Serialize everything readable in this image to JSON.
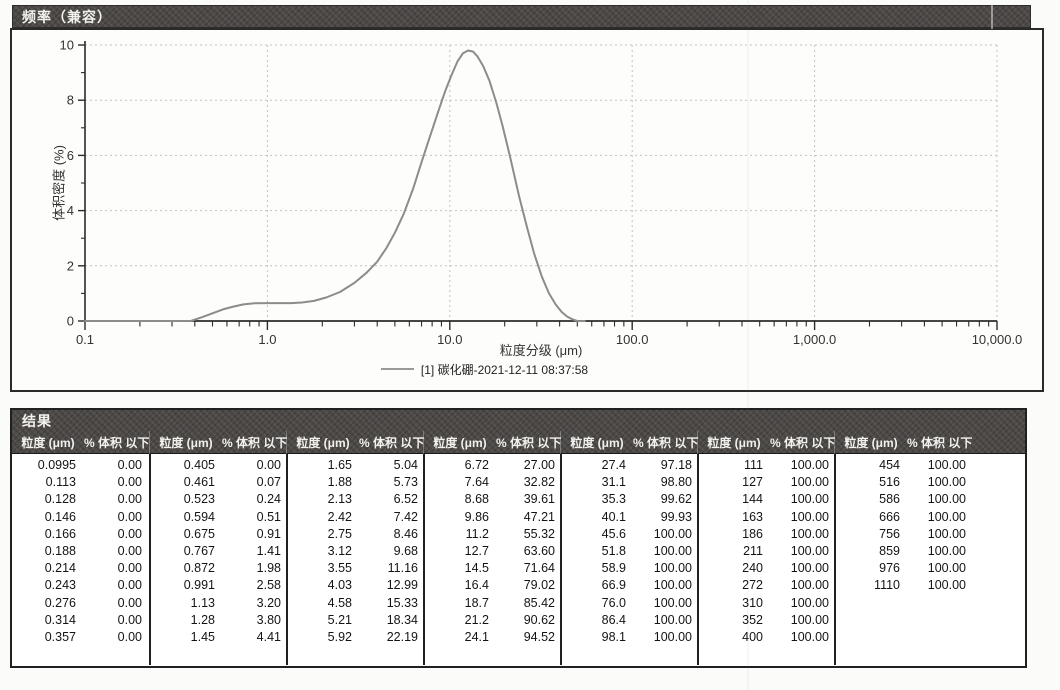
{
  "title_bar": {
    "label": "频率（兼容）"
  },
  "chart": {
    "ylabel": "体积密度 (%)",
    "xlabel": "粒度分级 (μm)",
    "legend": "[1] 碳化硼-2021-12-11 08:37:58",
    "y_ticks": [
      "0",
      "2",
      "4",
      "6",
      "8",
      "10"
    ],
    "x_ticks": [
      "0.1",
      "1.0",
      "10.0",
      "100.0",
      "1,000.0",
      "10,000.0"
    ]
  },
  "chart_data": {
    "type": "line",
    "title": "频率（兼容）",
    "xlabel": "粒度分级 (μm)",
    "ylabel": "体积密度 (%)",
    "x_scale": "log",
    "xlim": [
      0.1,
      10000
    ],
    "ylim": [
      0,
      10
    ],
    "grid": true,
    "legend_position": "bottom",
    "series": [
      {
        "name": "[1] 碳化硼-2021-12-11 08:37:58",
        "x": [
          0.1,
          0.2,
          0.3,
          0.38,
          0.44,
          0.5,
          0.57,
          0.65,
          0.74,
          0.85,
          1.0,
          1.15,
          1.35,
          1.55,
          1.8,
          2.1,
          2.5,
          3.0,
          3.5,
          4.0,
          4.5,
          5.0,
          5.6,
          6.3,
          7.0,
          7.8,
          8.6,
          9.4,
          10.2,
          11.0,
          11.8,
          12.6,
          13.4,
          14.2,
          15.2,
          16.5,
          18.0,
          19.5,
          21.5,
          24.0,
          26.5,
          29.0,
          32.0,
          35.0,
          38.0,
          41.0,
          44.0,
          47.0,
          50.0,
          55.0
        ],
        "y": [
          0.0,
          0.0,
          0.0,
          0.0,
          0.14,
          0.28,
          0.42,
          0.52,
          0.6,
          0.64,
          0.65,
          0.65,
          0.65,
          0.67,
          0.73,
          0.85,
          1.05,
          1.38,
          1.75,
          2.15,
          2.65,
          3.2,
          3.9,
          4.8,
          5.75,
          6.7,
          7.55,
          8.3,
          8.9,
          9.4,
          9.7,
          9.8,
          9.76,
          9.58,
          9.25,
          8.7,
          7.9,
          7.05,
          5.9,
          4.5,
          3.4,
          2.45,
          1.6,
          1.0,
          0.6,
          0.33,
          0.16,
          0.06,
          0.0,
          0.0
        ]
      }
    ]
  },
  "results": {
    "title": "结果",
    "col_headers": {
      "size": "粒度 (μm)",
      "pct": "% 体积 以下"
    },
    "groups": [
      {
        "rows": [
          [
            "0.0995",
            "0.00"
          ],
          [
            "0.113",
            "0.00"
          ],
          [
            "0.128",
            "0.00"
          ],
          [
            "0.146",
            "0.00"
          ],
          [
            "0.166",
            "0.00"
          ],
          [
            "0.188",
            "0.00"
          ],
          [
            "0.214",
            "0.00"
          ],
          [
            "0.243",
            "0.00"
          ],
          [
            "0.276",
            "0.00"
          ],
          [
            "0.314",
            "0.00"
          ],
          [
            "0.357",
            "0.00"
          ]
        ]
      },
      {
        "rows": [
          [
            "0.405",
            "0.00"
          ],
          [
            "0.461",
            "0.07"
          ],
          [
            "0.523",
            "0.24"
          ],
          [
            "0.594",
            "0.51"
          ],
          [
            "0.675",
            "0.91"
          ],
          [
            "0.767",
            "1.41"
          ],
          [
            "0.872",
            "1.98"
          ],
          [
            "0.991",
            "2.58"
          ],
          [
            "1.13",
            "3.20"
          ],
          [
            "1.28",
            "3.80"
          ],
          [
            "1.45",
            "4.41"
          ]
        ]
      },
      {
        "rows": [
          [
            "1.65",
            "5.04"
          ],
          [
            "1.88",
            "5.73"
          ],
          [
            "2.13",
            "6.52"
          ],
          [
            "2.42",
            "7.42"
          ],
          [
            "2.75",
            "8.46"
          ],
          [
            "3.12",
            "9.68"
          ],
          [
            "3.55",
            "11.16"
          ],
          [
            "4.03",
            "12.99"
          ],
          [
            "4.58",
            "15.33"
          ],
          [
            "5.21",
            "18.34"
          ],
          [
            "5.92",
            "22.19"
          ]
        ]
      },
      {
        "rows": [
          [
            "6.72",
            "27.00"
          ],
          [
            "7.64",
            "32.82"
          ],
          [
            "8.68",
            "39.61"
          ],
          [
            "9.86",
            "47.21"
          ],
          [
            "11.2",
            "55.32"
          ],
          [
            "12.7",
            "63.60"
          ],
          [
            "14.5",
            "71.64"
          ],
          [
            "16.4",
            "79.02"
          ],
          [
            "18.7",
            "85.42"
          ],
          [
            "21.2",
            "90.62"
          ],
          [
            "24.1",
            "94.52"
          ]
        ]
      },
      {
        "rows": [
          [
            "27.4",
            "97.18"
          ],
          [
            "31.1",
            "98.80"
          ],
          [
            "35.3",
            "99.62"
          ],
          [
            "40.1",
            "99.93"
          ],
          [
            "45.6",
            "100.00"
          ],
          [
            "51.8",
            "100.00"
          ],
          [
            "58.9",
            "100.00"
          ],
          [
            "66.9",
            "100.00"
          ],
          [
            "76.0",
            "100.00"
          ],
          [
            "86.4",
            "100.00"
          ],
          [
            "98.1",
            "100.00"
          ]
        ]
      },
      {
        "rows": [
          [
            "111",
            "100.00"
          ],
          [
            "127",
            "100.00"
          ],
          [
            "144",
            "100.00"
          ],
          [
            "163",
            "100.00"
          ],
          [
            "186",
            "100.00"
          ],
          [
            "211",
            "100.00"
          ],
          [
            "240",
            "100.00"
          ],
          [
            "272",
            "100.00"
          ],
          [
            "310",
            "100.00"
          ],
          [
            "352",
            "100.00"
          ],
          [
            "400",
            "100.00"
          ]
        ]
      },
      {
        "rows": [
          [
            "454",
            "100.00"
          ],
          [
            "516",
            "100.00"
          ],
          [
            "586",
            "100.00"
          ],
          [
            "666",
            "100.00"
          ],
          [
            "756",
            "100.00"
          ],
          [
            "859",
            "100.00"
          ],
          [
            "976",
            "100.00"
          ],
          [
            "1110",
            "100.00"
          ]
        ]
      }
    ]
  },
  "colors": {
    "header_bar": "#4b4846",
    "curve": "#8c8c8c",
    "grid": "#c2c2c2",
    "axis": "#2b2b2b"
  }
}
